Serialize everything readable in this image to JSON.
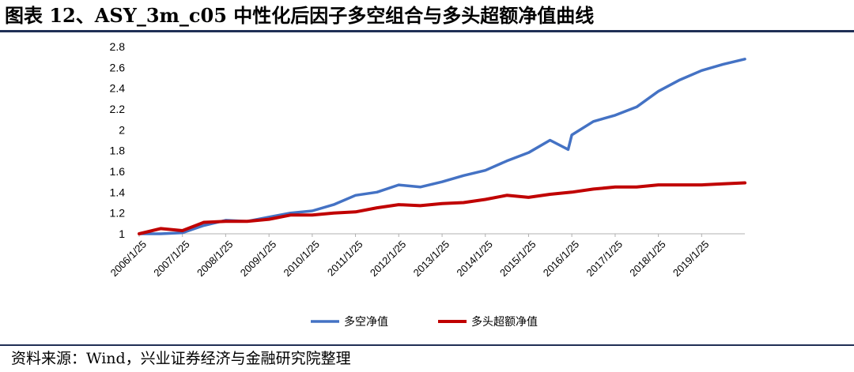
{
  "header": {
    "title": "图表 12、ASY_3m_c05 中性化后因子多空组合与多头超额净值曲线"
  },
  "footer": {
    "source": "资料来源：Wind，兴业证券经济与金融研究院整理"
  },
  "chart_data": {
    "type": "line",
    "title": "",
    "xlabel": "",
    "ylabel": "",
    "ylim": [
      1,
      2.8
    ],
    "yticks": [
      "1",
      "1.2",
      "1.4",
      "1.6",
      "1.8",
      "2",
      "2.2",
      "2.4",
      "2.6",
      "2.8"
    ],
    "x_start": "2006/1/25",
    "x_end": "2020/1/25",
    "xticks": [
      "2006/1/25",
      "2007/1/25",
      "2008/1/25",
      "2009/1/25",
      "2010/1/25",
      "2011/1/25",
      "2012/1/25",
      "2013/1/25",
      "2014/1/25",
      "2015/1/25",
      "2016/1/25",
      "2017/1/25",
      "2018/1/25",
      "2019/1/25"
    ],
    "legend_position": "bottom",
    "series": [
      {
        "name": "多空净值",
        "color": "#4472c4",
        "points": [
          [
            "2006/1/25",
            1.0
          ],
          [
            "2006/7/25",
            1.0
          ],
          [
            "2007/1/25",
            1.01
          ],
          [
            "2007/7/25",
            1.08
          ],
          [
            "2008/1/25",
            1.13
          ],
          [
            "2008/7/25",
            1.12
          ],
          [
            "2009/1/25",
            1.16
          ],
          [
            "2009/7/25",
            1.2
          ],
          [
            "2010/1/25",
            1.22
          ],
          [
            "2010/7/25",
            1.28
          ],
          [
            "2011/1/25",
            1.37
          ],
          [
            "2011/7/25",
            1.4
          ],
          [
            "2012/1/25",
            1.47
          ],
          [
            "2012/7/25",
            1.45
          ],
          [
            "2013/1/25",
            1.5
          ],
          [
            "2013/7/25",
            1.56
          ],
          [
            "2014/1/25",
            1.61
          ],
          [
            "2014/7/25",
            1.7
          ],
          [
            "2015/1/25",
            1.78
          ],
          [
            "2015/7/25",
            1.9
          ],
          [
            "2015/12/25",
            1.81
          ],
          [
            "2016/1/25",
            1.95
          ],
          [
            "2016/7/25",
            2.08
          ],
          [
            "2017/1/25",
            2.14
          ],
          [
            "2017/7/25",
            2.22
          ],
          [
            "2018/1/25",
            2.37
          ],
          [
            "2018/7/25",
            2.48
          ],
          [
            "2019/1/25",
            2.57
          ],
          [
            "2019/7/25",
            2.63
          ],
          [
            "2020/1/25",
            2.68
          ]
        ]
      },
      {
        "name": "多头超额净值",
        "color": "#c00000",
        "points": [
          [
            "2006/1/25",
            1.0
          ],
          [
            "2006/7/25",
            1.05
          ],
          [
            "2007/1/25",
            1.03
          ],
          [
            "2007/7/25",
            1.11
          ],
          [
            "2008/1/25",
            1.12
          ],
          [
            "2008/7/25",
            1.12
          ],
          [
            "2009/1/25",
            1.14
          ],
          [
            "2009/7/25",
            1.18
          ],
          [
            "2010/1/25",
            1.18
          ],
          [
            "2010/7/25",
            1.2
          ],
          [
            "2011/1/25",
            1.21
          ],
          [
            "2011/7/25",
            1.25
          ],
          [
            "2012/1/25",
            1.28
          ],
          [
            "2012/7/25",
            1.27
          ],
          [
            "2013/1/25",
            1.29
          ],
          [
            "2013/7/25",
            1.3
          ],
          [
            "2014/1/25",
            1.33
          ],
          [
            "2014/7/25",
            1.37
          ],
          [
            "2015/1/25",
            1.35
          ],
          [
            "2015/7/25",
            1.38
          ],
          [
            "2016/1/25",
            1.4
          ],
          [
            "2016/7/25",
            1.43
          ],
          [
            "2017/1/25",
            1.45
          ],
          [
            "2017/7/25",
            1.45
          ],
          [
            "2018/1/25",
            1.47
          ],
          [
            "2018/7/25",
            1.47
          ],
          [
            "2019/1/25",
            1.47
          ],
          [
            "2019/7/25",
            1.48
          ],
          [
            "2020/1/25",
            1.49
          ]
        ]
      }
    ]
  }
}
